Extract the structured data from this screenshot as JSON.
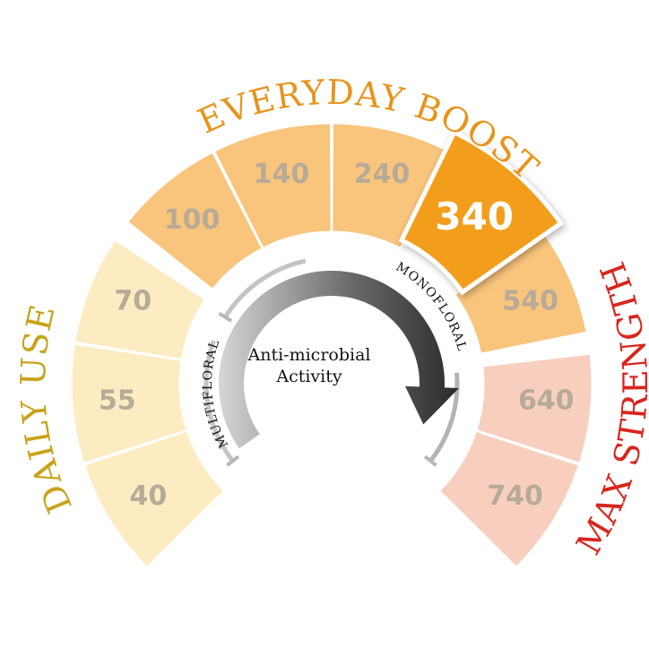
{
  "groups": [
    {
      "label": "DAILY USE",
      "color": "#C9A21A"
    },
    {
      "label": "EVERYDAY BOOST",
      "color": "#E8931A"
    },
    {
      "label": "MAX STRENGTH",
      "color": "#D7261E"
    }
  ],
  "segments": [
    {
      "value": "40",
      "group": 0,
      "fill": "#FDEBC2"
    },
    {
      "value": "55",
      "group": 0,
      "fill": "#FDEBC2"
    },
    {
      "value": "70",
      "group": 0,
      "fill": "#FDEBC2"
    },
    {
      "value": "100",
      "group": 1,
      "fill": "#F9C47C"
    },
    {
      "value": "140",
      "group": 1,
      "fill": "#F9C47C"
    },
    {
      "value": "240",
      "group": 1,
      "fill": "#F9C47C"
    },
    {
      "value": "340",
      "group": 1,
      "fill": "#F29E1E",
      "highlighted": true
    },
    {
      "value": "540",
      "group": 1,
      "fill": "#F9C47C"
    },
    {
      "value": "640",
      "group": 2,
      "fill": "#F8CFBE"
    },
    {
      "value": "740",
      "group": 2,
      "fill": "#F8CFBE"
    }
  ],
  "scale": {
    "left_label": "MULTIFLORAL",
    "right_label": "MONOFLORAL"
  },
  "center": {
    "line1": "Anti-microbial",
    "line2": "Activity"
  }
}
